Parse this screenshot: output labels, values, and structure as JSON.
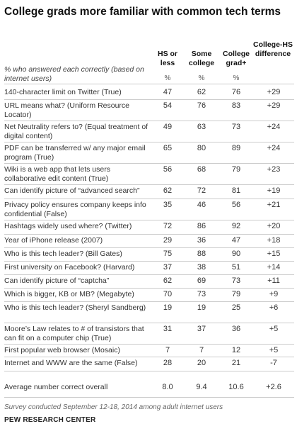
{
  "chart_data": {
    "type": "table",
    "title": "College grads more familiar with common tech terms",
    "subtitle": "% who answered each correctly (based on internet users)",
    "columns": [
      "HS or less",
      "Some college",
      "College grad+",
      "College-HS difference"
    ],
    "unit_row": [
      "%",
      "%",
      "%",
      ""
    ],
    "rows": [
      {
        "label": "140-character limit on Twitter (True)",
        "values": [
          "47",
          "62",
          "76",
          "+29"
        ]
      },
      {
        "label": "URL means what? (Uniform Resource Locator)",
        "values": [
          "54",
          "76",
          "83",
          "+29"
        ]
      },
      {
        "label": "Net Neutrality refers to? (Equal treatment of digital content)",
        "values": [
          "49",
          "63",
          "73",
          "+24"
        ]
      },
      {
        "label": "PDF can be transferred w/ any major email program (True)",
        "values": [
          "65",
          "80",
          "89",
          "+24"
        ]
      },
      {
        "label": "Wiki is a web app that lets users collaborative edit content (True)",
        "values": [
          "56",
          "68",
          "79",
          "+23"
        ]
      },
      {
        "label": "Can identify picture of “advanced search”",
        "values": [
          "62",
          "72",
          "81",
          "+19"
        ]
      },
      {
        "label": "Privacy policy ensures company keeps info confidential (False)",
        "values": [
          "35",
          "46",
          "56",
          "+21"
        ]
      },
      {
        "label": "Hashtags widely used where? (Twitter)",
        "values": [
          "72",
          "86",
          "92",
          "+20"
        ]
      },
      {
        "label": "Year of iPhone release (2007)",
        "values": [
          "29",
          "36",
          "47",
          "+18"
        ]
      },
      {
        "label": "Who is this tech leader? (Bill Gates)",
        "values": [
          "75",
          "88",
          "90",
          "+15"
        ]
      },
      {
        "label": "First university on Facebook? (Harvard)",
        "values": [
          "37",
          "38",
          "51",
          "+14"
        ]
      },
      {
        "label": "Can identify picture of “captcha”",
        "values": [
          "62",
          "69",
          "73",
          "+11"
        ]
      },
      {
        "label": "Which is bigger, KB or MB? (Megabyte)",
        "values": [
          "70",
          "73",
          "79",
          "+9"
        ]
      },
      {
        "label": "Who is this tech leader? (Sheryl Sandberg)",
        "values": [
          "19",
          "19",
          "25",
          "+6"
        ]
      },
      {
        "label": "Moore’s Law relates to # of transistors that can fit on a computer chip (True)",
        "values": [
          "31",
          "37",
          "36",
          "+5"
        ]
      },
      {
        "label": "First popular web browser (Mosaic)",
        "values": [
          "7",
          "7",
          "12",
          "+5"
        ]
      },
      {
        "label": "Internet and WWW are the same (False)",
        "values": [
          "28",
          "20",
          "21",
          "-7"
        ]
      }
    ],
    "summary_row": {
      "label": "Average number correct overall",
      "values": [
        "8.0",
        "9.4",
        "10.6",
        "+2.6"
      ]
    }
  },
  "footer": {
    "note": "Survey conducted September 12-18, 2014 among adult internet users",
    "source": "PEW RESEARCH CENTER"
  }
}
